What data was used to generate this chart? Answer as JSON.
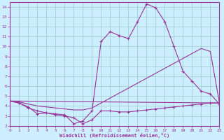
{
  "xlabel": "Windchill (Refroidissement éolien,°C)",
  "xlim": [
    0,
    23
  ],
  "ylim": [
    2,
    14.5
  ],
  "yticks": [
    2,
    3,
    4,
    5,
    6,
    7,
    8,
    9,
    10,
    11,
    12,
    13,
    14
  ],
  "xticks": [
    0,
    1,
    2,
    3,
    4,
    5,
    6,
    7,
    8,
    9,
    10,
    11,
    12,
    13,
    14,
    15,
    16,
    17,
    18,
    19,
    20,
    21,
    22,
    23
  ],
  "bg_color": "#cceeff",
  "line_color": "#993399",
  "grid_color": "#99cccc",
  "line1_x": [
    0,
    1,
    2,
    3,
    4,
    5,
    6,
    7,
    8,
    9,
    10,
    11,
    12,
    13,
    14,
    15,
    16,
    17,
    18,
    19,
    20,
    21,
    22,
    23
  ],
  "line1_y": [
    4.5,
    4.3,
    3.8,
    3.5,
    3.3,
    3.2,
    3.1,
    2.2,
    2.5,
    3.5,
    10.5,
    11.5,
    11.1,
    10.8,
    12.5,
    14.3,
    13.9,
    12.5,
    10.0,
    7.5,
    6.5,
    5.5,
    5.2,
    4.2
  ],
  "line2_x": [
    0,
    1,
    2,
    3,
    4,
    5,
    6,
    7,
    8,
    9,
    10,
    11,
    12,
    13,
    14,
    15,
    16,
    17,
    18,
    19,
    20,
    21,
    22,
    23
  ],
  "line2_y": [
    4.5,
    4.4,
    4.2,
    4.0,
    3.9,
    3.8,
    3.7,
    3.6,
    3.6,
    3.8,
    4.3,
    4.8,
    5.3,
    5.8,
    6.3,
    6.8,
    7.3,
    7.8,
    8.3,
    8.8,
    9.3,
    9.8,
    9.5,
    4.3
  ],
  "line3_x": [
    0,
    23
  ],
  "line3_y": [
    4.5,
    4.3
  ],
  "line4_x": [
    0,
    1,
    2,
    3,
    4,
    5,
    6,
    7,
    8,
    9,
    10,
    11,
    12,
    13,
    14,
    15,
    16,
    17,
    18,
    19,
    20,
    21,
    22,
    23
  ],
  "line4_y": [
    4.5,
    4.3,
    3.9,
    3.2,
    3.3,
    3.1,
    3.0,
    2.8,
    2.2,
    2.6,
    3.5,
    3.5,
    3.4,
    3.4,
    3.5,
    3.6,
    3.7,
    3.8,
    3.9,
    4.0,
    4.1,
    4.2,
    4.3,
    4.3
  ]
}
